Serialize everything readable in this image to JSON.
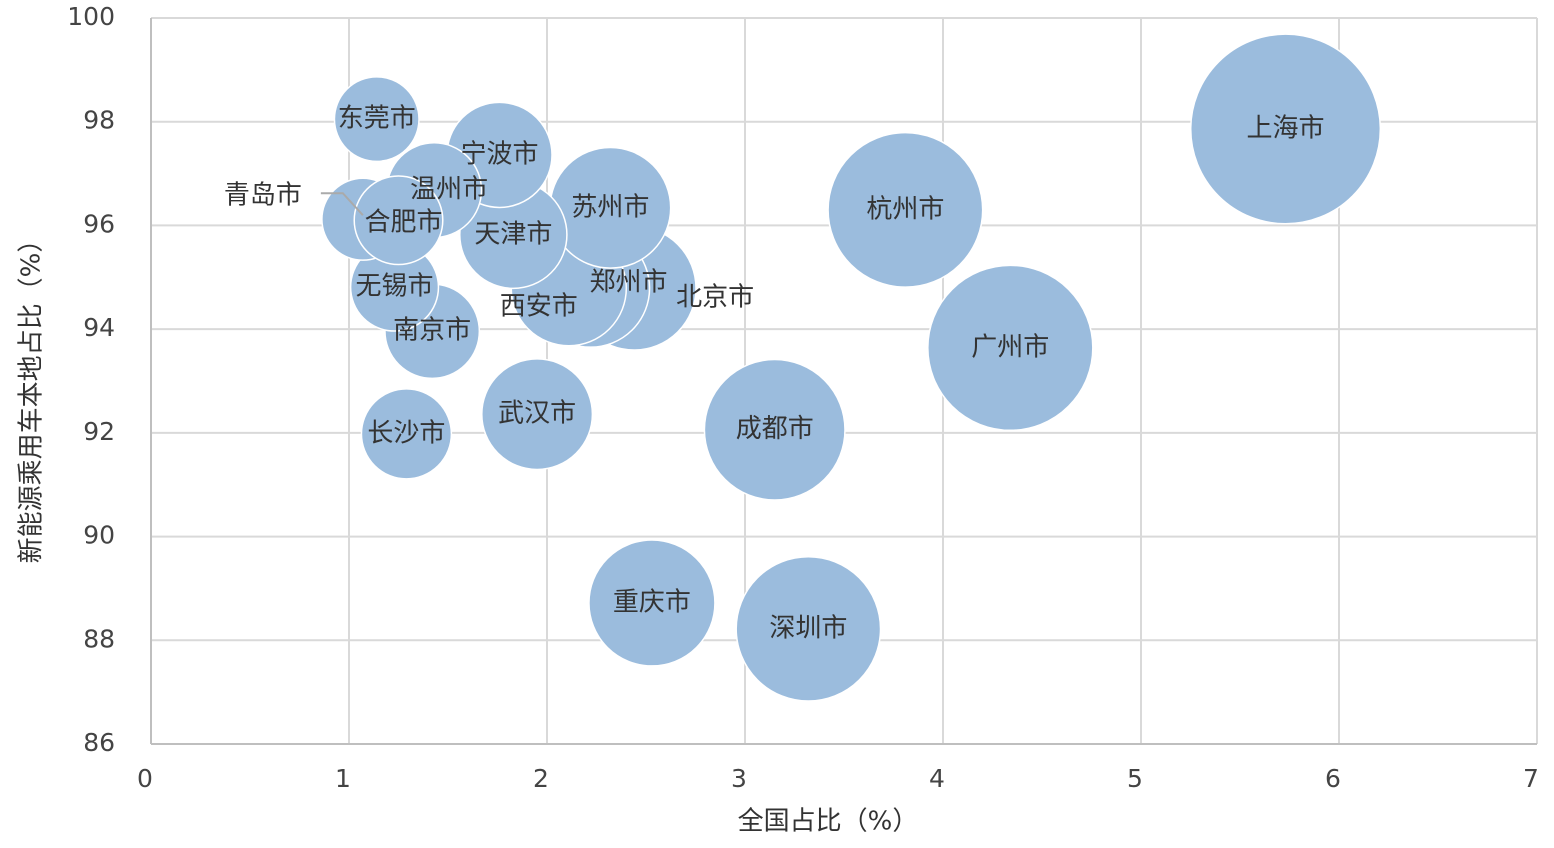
{
  "chart_data": {
    "type": "bubble",
    "x_label": "全国占比（%）",
    "y_label": "新能源乘用车本地占比（%）",
    "color": "#9bbcdd",
    "grid": true,
    "xlim": [
      0,
      7
    ],
    "xticks": [
      0,
      1,
      2,
      3,
      4,
      5,
      6,
      7
    ],
    "ylim": [
      86,
      100
    ],
    "yticks": [
      86,
      88,
      90,
      92,
      94,
      96,
      98,
      100
    ],
    "categories": [
      "上海市",
      "杭州市",
      "广州市",
      "成都市",
      "深圳市",
      "重庆市",
      "武汉市",
      "长沙市",
      "南京市",
      "无锡市",
      "北京市",
      "郑州市",
      "西安市",
      "苏州市",
      "天津市",
      "东莞市",
      "宁波市",
      "青岛市",
      "温州市",
      "合肥市"
    ],
    "x": [
      5.73,
      3.81,
      4.34,
      3.15,
      3.32,
      2.53,
      1.95,
      1.29,
      1.42,
      1.23,
      2.44,
      2.22,
      2.11,
      2.32,
      1.83,
      1.14,
      1.76,
      1.07,
      1.43,
      1.25
    ],
    "values": [
      97.86,
      96.3,
      93.64,
      92.06,
      88.22,
      88.72,
      92.36,
      91.98,
      93.96,
      94.81,
      94.79,
      94.79,
      94.79,
      96.34,
      95.82,
      98.05,
      97.36,
      96.12,
      96.68,
      96.1
    ],
    "sizes": [
      5.73,
      3.81,
      4.34,
      3.15,
      3.32,
      2.53,
      1.95,
      1.29,
      1.42,
      1.23,
      2.44,
      2.22,
      2.11,
      2.32,
      1.83,
      1.14,
      1.76,
      1.07,
      1.43,
      1.25
    ]
  }
}
